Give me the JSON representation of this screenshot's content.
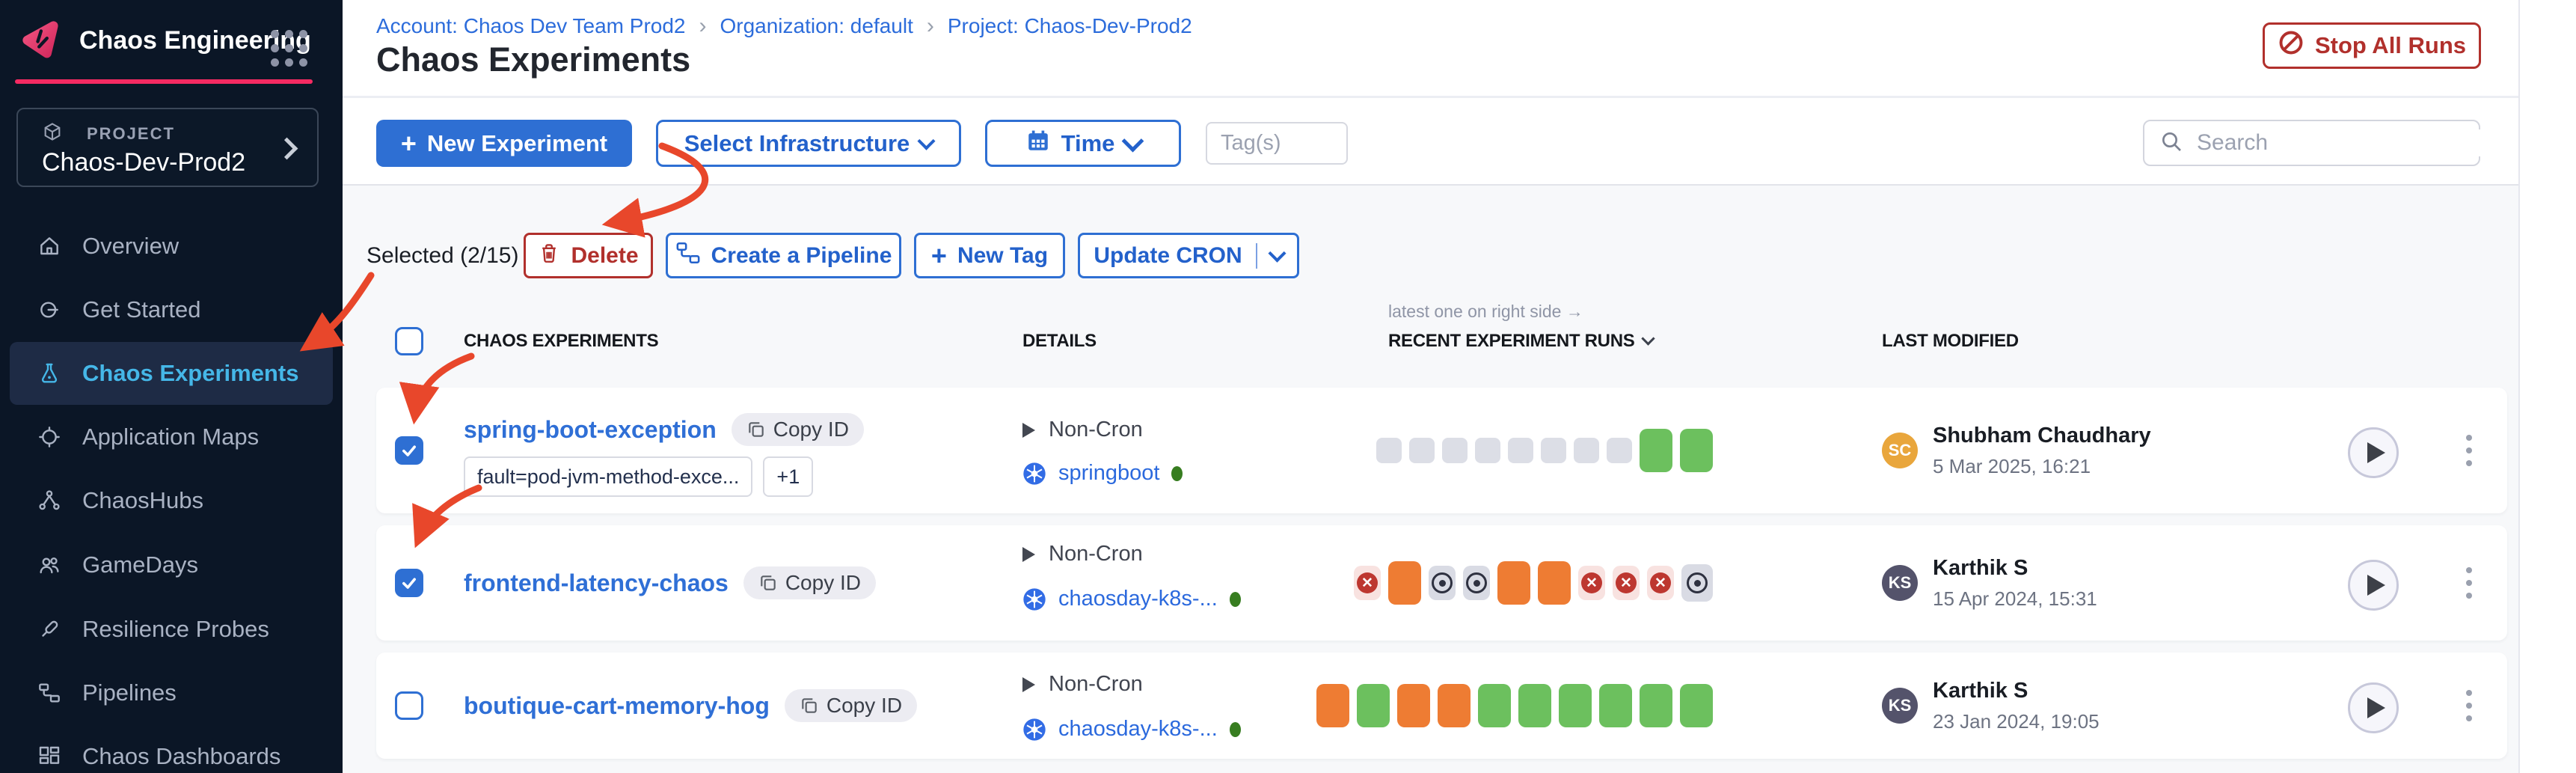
{
  "sidebar": {
    "brand_title": "Chaos Engineering",
    "project_label": "PROJECT",
    "project_name": "Chaos-Dev-Prod2",
    "items": [
      {
        "label": "Overview",
        "icon": "home",
        "active": false
      },
      {
        "label": "Get Started",
        "icon": "get-started",
        "active": false
      },
      {
        "label": "Chaos Experiments",
        "icon": "flask",
        "active": true
      },
      {
        "label": "Application Maps",
        "icon": "target",
        "active": false
      },
      {
        "label": "ChaosHubs",
        "icon": "hub",
        "active": false
      },
      {
        "label": "GameDays",
        "icon": "people",
        "active": false
      },
      {
        "label": "Resilience Probes",
        "icon": "probe",
        "active": false
      },
      {
        "label": "Pipelines",
        "icon": "pipeline",
        "active": false
      },
      {
        "label": "Chaos Dashboards",
        "icon": "dashboard",
        "active": false
      }
    ]
  },
  "header": {
    "breadcrumbs": [
      "Account: Chaos Dev Team Prod2",
      "Organization: default",
      "Project: Chaos-Dev-Prod2"
    ],
    "title": "Chaos Experiments",
    "stop_all_runs_label": "Stop All Runs"
  },
  "toolbar": {
    "new_experiment_label": "New Experiment",
    "select_infrastructure_label": "Select Infrastructure",
    "time_label": "Time",
    "tags_placeholder": "Tag(s)",
    "search_placeholder": "Search"
  },
  "bulk_actions": {
    "selected_label": "Selected (2/15)",
    "delete_label": "Delete",
    "create_pipeline_label": "Create a Pipeline",
    "new_tag_label": "New Tag",
    "update_cron_label": "Update CRON"
  },
  "table": {
    "runs_note": "latest one on right side →",
    "col_experiments": "CHAOS EXPERIMENTS",
    "col_details": "DETAILS",
    "col_runs": "RECENT EXPERIMENT RUNS",
    "col_modified": "LAST MODIFIED"
  },
  "experiments": [
    {
      "name": "spring-boot-exception",
      "copy_id_label": "Copy ID",
      "checked": true,
      "tags": [
        "fault=pod-jvm-method-exce...",
        "+1"
      ],
      "schedule": "Non-Cron",
      "infrastructure": "springboot",
      "runs": [
        {
          "status": "empty",
          "size": "xs"
        },
        {
          "status": "empty",
          "size": "xs"
        },
        {
          "status": "empty",
          "size": "xs"
        },
        {
          "status": "empty",
          "size": "xs"
        },
        {
          "status": "empty",
          "size": "xs"
        },
        {
          "status": "empty",
          "size": "xs"
        },
        {
          "status": "empty",
          "size": "xs"
        },
        {
          "status": "empty",
          "size": "xs"
        },
        {
          "status": "completed",
          "size": "lg"
        },
        {
          "status": "completed",
          "size": "lg"
        }
      ],
      "modified_by": "Shubham Chaudhary",
      "modified_initials": "SC",
      "avatar_color": "#e9a63c",
      "modified_date": "5 Mar 2025, 16:21"
    },
    {
      "name": "frontend-latency-chaos",
      "copy_id_label": "Copy ID",
      "checked": true,
      "tags": [],
      "schedule": "Non-Cron",
      "infrastructure": "chaosday-k8s-...",
      "runs": [
        {
          "status": "failed",
          "size": "sm"
        },
        {
          "status": "running",
          "size": "lg"
        },
        {
          "status": "stopped",
          "size": "sm"
        },
        {
          "status": "stopped",
          "size": "sm"
        },
        {
          "status": "running",
          "size": "lg"
        },
        {
          "status": "running",
          "size": "lg"
        },
        {
          "status": "failed",
          "size": "sm"
        },
        {
          "status": "failed",
          "size": "sm"
        },
        {
          "status": "failed",
          "size": "sm"
        },
        {
          "status": "stopped",
          "size": "md"
        }
      ],
      "modified_by": "Karthik S",
      "modified_initials": "KS",
      "avatar_color": "#54536b",
      "modified_date": "15 Apr 2024, 15:31"
    },
    {
      "name": "boutique-cart-memory-hog",
      "copy_id_label": "Copy ID",
      "checked": false,
      "tags": [],
      "schedule": "Non-Cron",
      "infrastructure": "chaosday-k8s-...",
      "runs": [
        {
          "status": "running",
          "size": "lg"
        },
        {
          "status": "completed",
          "size": "lg"
        },
        {
          "status": "running",
          "size": "lg"
        },
        {
          "status": "running",
          "size": "lg"
        },
        {
          "status": "completed",
          "size": "lg"
        },
        {
          "status": "completed",
          "size": "lg"
        },
        {
          "status": "completed",
          "size": "lg"
        },
        {
          "status": "completed",
          "size": "lg"
        },
        {
          "status": "completed",
          "size": "lg"
        },
        {
          "status": "completed",
          "size": "lg"
        }
      ],
      "modified_by": "Karthik S",
      "modified_initials": "KS",
      "avatar_color": "#54536b",
      "modified_date": "23 Jan 2024, 19:05"
    }
  ],
  "colors": {
    "accent_blue": "#2e6fd3",
    "brand_pink": "#f52a62",
    "danger_red": "#b1302c",
    "run_completed": "#6cc05e",
    "run_running": "#ee7c33",
    "run_failed": "#bd3730",
    "run_empty": "#dcdee6",
    "annotation_red": "#e8472b"
  }
}
